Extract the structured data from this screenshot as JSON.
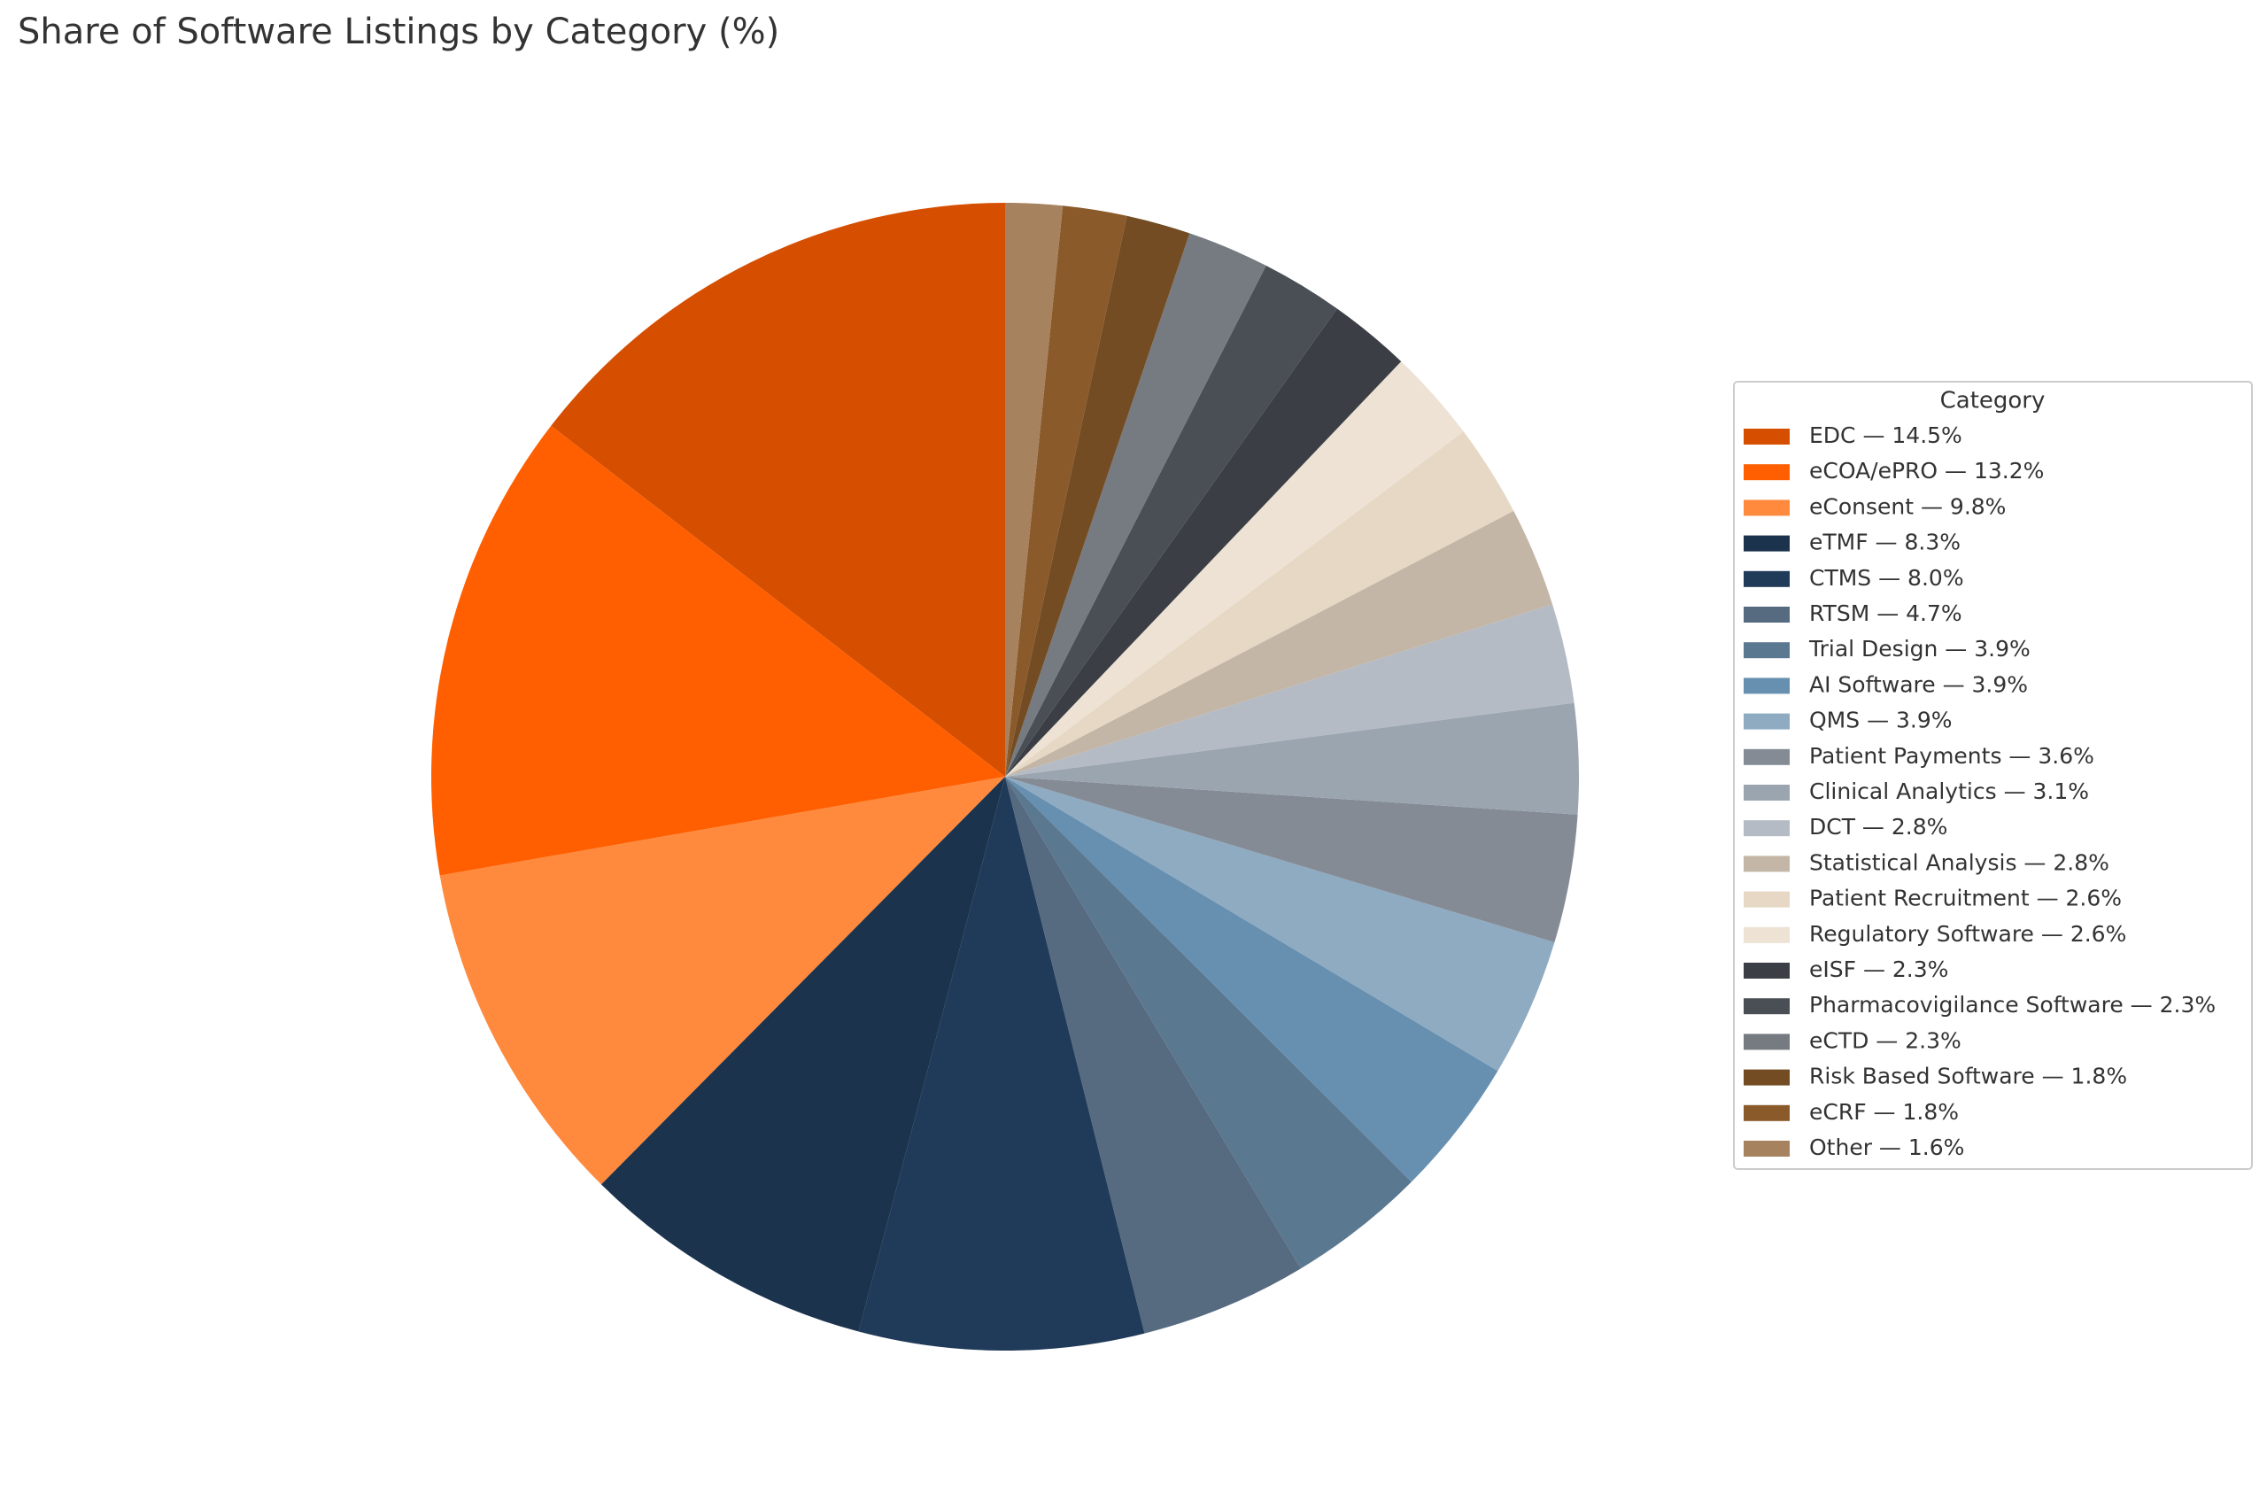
{
  "chart_data": {
    "type": "pie",
    "title": "Share of Software Listings by Category (%)",
    "legend_title": "Category",
    "categories": [
      "EDC — 14.5%",
      "eCOA/ePRO — 13.2%",
      "eConsent — 9.8%",
      "eTMF — 8.3%",
      "CTMS — 8.0%",
      "RTSM — 4.7%",
      "Trial Design — 3.9%",
      "AI Software — 3.9%",
      "QMS — 3.9%",
      "Patient Payments — 3.6%",
      "Clinical Analytics — 3.1%",
      "DCT — 2.8%",
      "Statistical Analysis — 2.8%",
      "Patient Recruitment — 2.6%",
      "Regulatory Software — 2.6%",
      "eISF — 2.3%",
      "Pharmacovigilance Software — 2.3%",
      "eCTD — 2.3%",
      "Risk Based Software — 1.8%",
      "eCRF — 1.8%",
      "Other — 1.6%"
    ],
    "values": [
      14.5,
      13.2,
      9.8,
      8.3,
      8.0,
      4.7,
      3.9,
      3.9,
      3.9,
      3.6,
      3.1,
      2.8,
      2.8,
      2.6,
      2.6,
      2.3,
      2.3,
      2.3,
      1.8,
      1.8,
      1.6
    ],
    "colors": [
      "#d64f00",
      "#ff5f00",
      "#ff8a3d",
      "#1c334d",
      "#203a59",
      "#566a80",
      "#5b7891",
      "#6790b0",
      "#8eabc2",
      "#858b95",
      "#9ba5b0",
      "#b4bbc4",
      "#c4b6a6",
      "#e6d8c4",
      "#ede2d4",
      "#3b3f45",
      "#4a4f56",
      "#767b81",
      "#734c24",
      "#8a5a2a",
      "#a6825f"
    ],
    "legend_position": "right"
  }
}
